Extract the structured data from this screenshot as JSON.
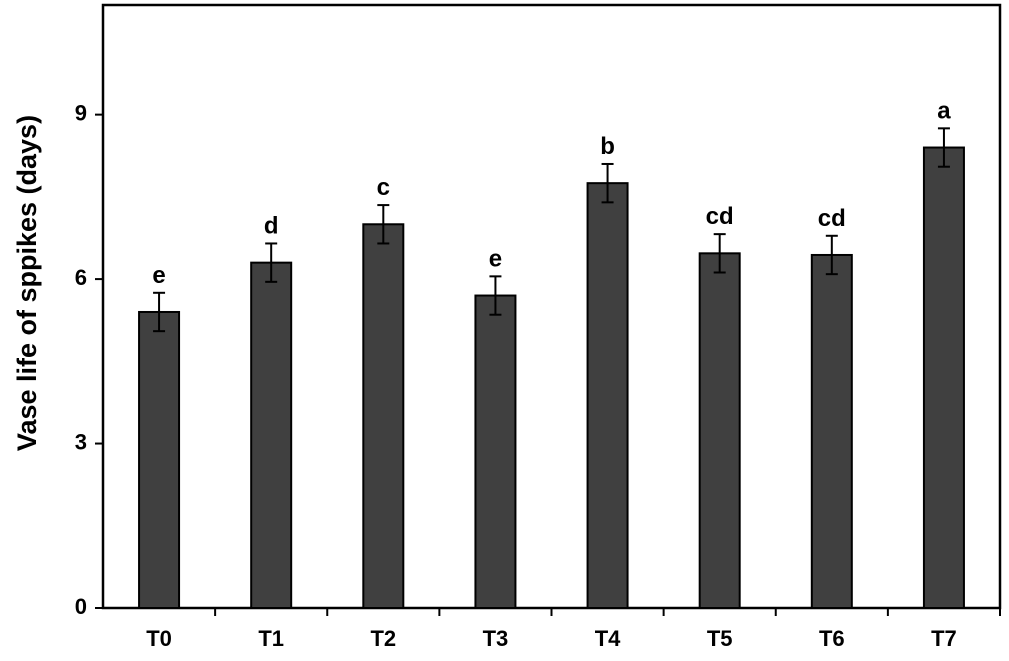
{
  "chart_data": {
    "type": "bar",
    "title": "",
    "xlabel": "",
    "ylabel": "Vase life of sppikes (days)",
    "ylim": [
      0,
      11
    ],
    "yticks": [
      0,
      3,
      6,
      9
    ],
    "grid": false,
    "bar_color": "#404040",
    "categories": [
      "T0",
      "T1",
      "T2",
      "T3",
      "T4",
      "T5",
      "T6",
      "T7"
    ],
    "values": [
      5.4,
      6.3,
      7.0,
      5.7,
      7.75,
      6.47,
      6.44,
      8.4
    ],
    "errors": [
      0.35,
      0.35,
      0.35,
      0.35,
      0.35,
      0.35,
      0.35,
      0.35
    ],
    "significance": [
      "e",
      "d",
      "c",
      "e",
      "b",
      "cd",
      "cd",
      "a"
    ]
  }
}
